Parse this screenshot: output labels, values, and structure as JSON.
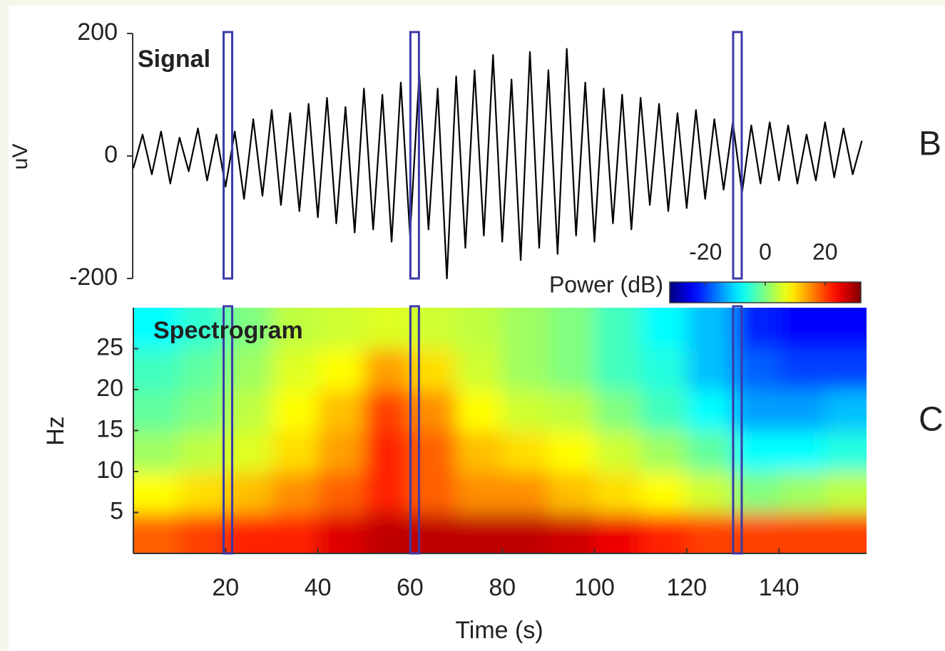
{
  "chart_data": [
    {
      "type": "line",
      "title": "Signal",
      "ylabel": "uV",
      "color": "#000000",
      "xlim": [
        0,
        159
      ],
      "ylim": [
        -200,
        200
      ],
      "yticks": [
        -200,
        0,
        200
      ],
      "x": [
        0,
        2,
        4,
        6,
        8,
        10,
        12,
        14,
        16,
        18,
        20,
        22,
        24,
        26,
        28,
        30,
        32,
        34,
        36,
        38,
        40,
        42,
        44,
        46,
        48,
        50,
        52,
        54,
        56,
        58,
        60,
        62,
        64,
        66,
        68,
        70,
        72,
        74,
        76,
        78,
        80,
        82,
        84,
        86,
        88,
        90,
        92,
        94,
        96,
        98,
        100,
        102,
        104,
        106,
        108,
        110,
        112,
        114,
        116,
        118,
        120,
        122,
        124,
        126,
        128,
        130,
        132,
        134,
        136,
        138,
        140,
        142,
        144,
        146,
        148,
        150,
        152,
        154,
        156,
        158
      ],
      "values": [
        -20,
        35,
        -30,
        40,
        -45,
        30,
        -25,
        45,
        -40,
        35,
        -50,
        40,
        -70,
        60,
        -65,
        75,
        -80,
        70,
        -90,
        85,
        -100,
        95,
        -110,
        80,
        -125,
        110,
        -120,
        100,
        -140,
        120,
        -130,
        135,
        -120,
        110,
        -200,
        130,
        -150,
        140,
        -130,
        165,
        -140,
        125,
        -170,
        170,
        -150,
        140,
        -160,
        175,
        -130,
        120,
        -140,
        110,
        -110,
        100,
        -120,
        95,
        -80,
        85,
        -90,
        70,
        -85,
        75,
        -70,
        60,
        -55,
        55,
        -60,
        50,
        -45,
        55,
        -40,
        50,
        -45,
        35,
        -40,
        55,
        -35,
        45,
        -30,
        25
      ],
      "highlights": [
        20.5,
        61,
        131
      ],
      "highlight_color": "#3a3aa8"
    },
    {
      "type": "heatmap",
      "title": "Spectrogram",
      "xlabel": "Time (s)",
      "ylabel": "Hz",
      "xlim": [
        0,
        159
      ],
      "ylim": [
        0,
        30
      ],
      "xticks": [
        20,
        40,
        60,
        80,
        100,
        120,
        140
      ],
      "yticks": [
        5,
        10,
        15,
        20,
        25
      ],
      "x": [
        5,
        15,
        25,
        35,
        45,
        55,
        65,
        75,
        85,
        95,
        105,
        115,
        125,
        135,
        145,
        155
      ],
      "y": [
        2.5,
        7.5,
        12.5,
        17.5,
        22.5,
        27.5
      ],
      "z": [
        [
          18,
          20,
          22,
          22,
          26,
          28,
          28,
          28,
          28,
          27,
          25,
          22,
          20,
          20,
          20,
          20
        ],
        [
          8,
          10,
          12,
          15,
          18,
          22,
          18,
          15,
          15,
          12,
          10,
          8,
          5,
          0,
          2,
          4
        ],
        [
          2,
          4,
          6,
          10,
          14,
          22,
          18,
          12,
          10,
          8,
          5,
          2,
          -2,
          -8,
          -8,
          -6
        ],
        [
          -2,
          0,
          4,
          8,
          12,
          20,
          15,
          8,
          5,
          4,
          0,
          -4,
          -8,
          -14,
          -14,
          -12
        ],
        [
          -4,
          -2,
          2,
          6,
          8,
          14,
          10,
          5,
          2,
          0,
          -4,
          -6,
          -12,
          -18,
          -20,
          -20
        ],
        [
          -8,
          -5,
          0,
          4,
          5,
          6,
          5,
          4,
          2,
          0,
          -4,
          -8,
          -12,
          -22,
          -24,
          -24
        ]
      ],
      "colorbar_label": "Power (dB)",
      "clim": [
        -32,
        32
      ],
      "cticks": [
        -20,
        0,
        20
      ],
      "colormap": "jet"
    }
  ],
  "panel_labels": [
    "B",
    "C"
  ]
}
